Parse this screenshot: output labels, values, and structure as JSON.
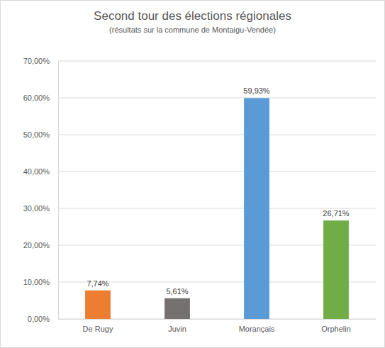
{
  "chart_data": {
    "type": "bar",
    "title": "Second tour des élections régionales",
    "subtitle": "(résultats sur la commune de Montaigu-Vendée)",
    "categories": [
      "De Rugy",
      "Juvin",
      "Morançais",
      "Orphelin"
    ],
    "values": [
      7.74,
      5.61,
      59.93,
      26.71
    ],
    "value_labels": [
      "7,74%",
      "5,61%",
      "59,93%",
      "26,71%"
    ],
    "colors": [
      "#ed7d31",
      "#767171",
      "#5b9bd5",
      "#70ad47"
    ],
    "ylim": [
      0,
      70
    ],
    "yticks": [
      {
        "value": 0,
        "label": "0,00%"
      },
      {
        "value": 10,
        "label": "10,00%"
      },
      {
        "value": 20,
        "label": "20,00%"
      },
      {
        "value": 30,
        "label": "30,00%"
      },
      {
        "value": 40,
        "label": "40,00%"
      },
      {
        "value": 50,
        "label": "50,00%"
      },
      {
        "value": 60,
        "label": "60,00%"
      },
      {
        "value": 70,
        "label": "70,00%"
      }
    ],
    "grid": true,
    "data_labels": true
  }
}
